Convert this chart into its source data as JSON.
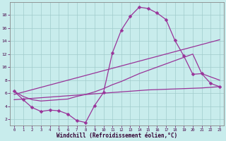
{
  "xlabel": "Windchill (Refroidissement éolien,°C)",
  "background_color": "#c8ecec",
  "line_color": "#993399",
  "xlim": [
    -0.5,
    23.5
  ],
  "ylim": [
    1.0,
    20.0
  ],
  "xticks": [
    0,
    1,
    2,
    3,
    4,
    5,
    6,
    7,
    8,
    9,
    10,
    11,
    12,
    13,
    14,
    15,
    16,
    17,
    18,
    19,
    20,
    21,
    22,
    23
  ],
  "yticks": [
    2,
    4,
    6,
    8,
    10,
    12,
    14,
    16,
    18
  ],
  "curve1_x": [
    0,
    1,
    2,
    3,
    4,
    5,
    6,
    7,
    8,
    9,
    10,
    11,
    12,
    13,
    14,
    15,
    16,
    17,
    18,
    19,
    20,
    21,
    22,
    23
  ],
  "curve1_y": [
    6.3,
    5.0,
    3.8,
    3.2,
    3.4,
    3.3,
    2.8,
    1.8,
    1.5,
    4.1,
    6.1,
    12.2,
    15.7,
    17.8,
    19.2,
    19.0,
    18.3,
    17.3,
    14.1,
    11.7,
    8.9,
    9.0,
    7.5,
    7.0
  ],
  "curve2_x": [
    0,
    1,
    2,
    3,
    4,
    5,
    6,
    7,
    8,
    9,
    10,
    11,
    12,
    13,
    14,
    15,
    16,
    17,
    18,
    19,
    20,
    21,
    22,
    23
  ],
  "curve2_y": [
    5.0,
    5.1,
    5.2,
    5.3,
    5.4,
    5.5,
    5.6,
    5.7,
    5.8,
    5.9,
    6.0,
    6.1,
    6.2,
    6.3,
    6.4,
    6.5,
    6.55,
    6.6,
    6.65,
    6.7,
    6.75,
    6.8,
    6.9,
    7.0
  ],
  "curve3_x": [
    0,
    23
  ],
  "curve3_y": [
    5.8,
    14.2
  ],
  "curve4_x": [
    0,
    1,
    2,
    3,
    4,
    5,
    6,
    7,
    8,
    9,
    10,
    11,
    12,
    13,
    14,
    15,
    16,
    17,
    18,
    19,
    20,
    21,
    22,
    23
  ],
  "curve4_y": [
    6.3,
    5.5,
    5.0,
    4.8,
    4.9,
    5.0,
    5.1,
    5.5,
    5.8,
    6.2,
    6.7,
    7.3,
    7.8,
    8.4,
    9.0,
    9.5,
    10.0,
    10.5,
    11.0,
    11.5,
    12.0,
    9.0,
    8.5,
    8.0
  ],
  "grid_color": "#a0cccc",
  "markersize": 2.5,
  "linewidth": 0.9
}
